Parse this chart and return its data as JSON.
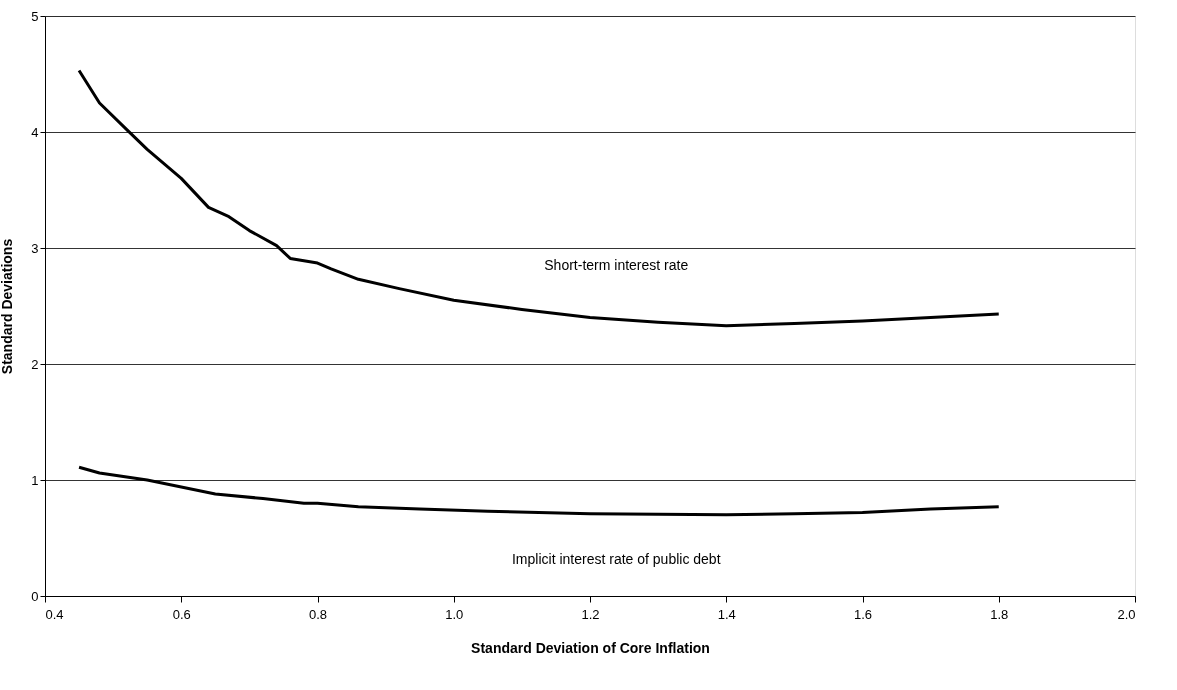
{
  "chart_data": {
    "type": "line",
    "xlabel": "Standard Deviation of Core Inflation",
    "ylabel": "Standard Deviations",
    "xlim": [
      0.4,
      2.0
    ],
    "xticks": [
      {
        "value": 0.4,
        "label": "0.4"
      },
      {
        "value": 0.6,
        "label": "0.6"
      },
      {
        "value": 0.8,
        "label": "0.8"
      },
      {
        "value": 1.0,
        "label": "1.0"
      },
      {
        "value": 1.2,
        "label": "1.2"
      },
      {
        "value": 1.4,
        "label": "1.4"
      },
      {
        "value": 1.6,
        "label": "1.6"
      },
      {
        "value": 1.8,
        "label": "1.8"
      },
      {
        "value": 2.0,
        "label": "2.0"
      }
    ],
    "ylim": [
      0,
      5
    ],
    "yticks": [
      0,
      1,
      2,
      3,
      4,
      5
    ],
    "grid": "y",
    "legend": false,
    "marker": "none",
    "line_style": "solid",
    "series": [
      {
        "name": "Short-term interest rate",
        "color": "#000000",
        "x": [
          0.45,
          0.48,
          0.52,
          0.55,
          0.6,
          0.64,
          0.67,
          0.7,
          0.74,
          0.76,
          0.8,
          0.82,
          0.86,
          0.92,
          1.0,
          1.1,
          1.2,
          1.3,
          1.4,
          1.5,
          1.6,
          1.7,
          1.8
        ],
        "values": [
          4.53,
          4.25,
          4.02,
          3.85,
          3.6,
          3.35,
          3.27,
          3.15,
          3.02,
          2.91,
          2.87,
          2.82,
          2.73,
          2.65,
          2.55,
          2.47,
          2.4,
          2.36,
          2.33,
          2.35,
          2.37,
          2.4,
          2.43
        ]
      },
      {
        "name": "Implicit interest rate of public debt",
        "color": "#000000",
        "x": [
          0.45,
          0.48,
          0.55,
          0.65,
          0.72,
          0.78,
          0.8,
          0.86,
          0.95,
          1.05,
          1.2,
          1.4,
          1.5,
          1.6,
          1.7,
          1.8
        ],
        "values": [
          1.11,
          1.06,
          1.0,
          0.88,
          0.84,
          0.8,
          0.8,
          0.77,
          0.75,
          0.73,
          0.71,
          0.7,
          0.71,
          0.72,
          0.75,
          0.77
        ]
      }
    ]
  }
}
